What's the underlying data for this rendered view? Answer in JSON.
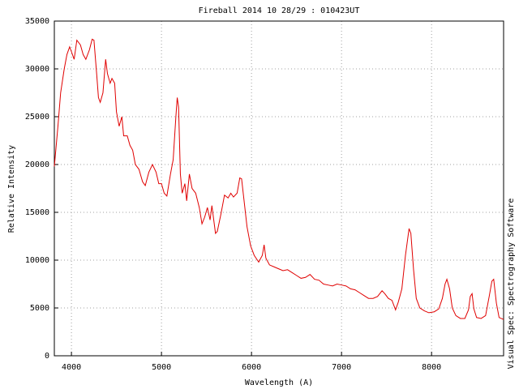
{
  "chart_data": {
    "type": "line",
    "title": "Fireball 2014 10 28/29 : 010423UT",
    "x_label": "Wavelength (A)",
    "y_label": "Relative Intensity",
    "side_label": "Visual Spec: Spectrography Software",
    "x": [
      3810,
      3850,
      3880,
      3920,
      3950,
      3980,
      4000,
      4030,
      4060,
      4100,
      4130,
      4160,
      4200,
      4230,
      4250,
      4280,
      4300,
      4320,
      4350,
      4380,
      4400,
      4430,
      4450,
      4480,
      4500,
      4530,
      4560,
      4580,
      4620,
      4650,
      4680,
      4710,
      4750,
      4790,
      4820,
      4860,
      4900,
      4940,
      4970,
      5000,
      5030,
      5060,
      5100,
      5130,
      5160,
      5175,
      5190,
      5210,
      5230,
      5260,
      5280,
      5310,
      5340,
      5380,
      5420,
      5450,
      5480,
      5510,
      5540,
      5560,
      5600,
      5620,
      5660,
      5700,
      5740,
      5770,
      5800,
      5840,
      5870,
      5890,
      5920,
      5950,
      5990,
      6030,
      6080,
      6120,
      6140,
      6160,
      6200,
      6250,
      6300,
      6350,
      6400,
      6450,
      6500,
      6550,
      6600,
      6650,
      6700,
      6750,
      6800,
      6850,
      6900,
      6950,
      7000,
      7050,
      7100,
      7150,
      7200,
      7250,
      7300,
      7350,
      7400,
      7450,
      7480,
      7520,
      7560,
      7600,
      7630,
      7670,
      7710,
      7750,
      7770,
      7800,
      7830,
      7870,
      7920,
      7970,
      8030,
      8080,
      8120,
      8150,
      8170,
      8200,
      8230,
      8270,
      8320,
      8370,
      8410,
      8430,
      8450,
      8470,
      8500,
      8550,
      8600,
      8640,
      8670,
      8690,
      8720,
      8750,
      8800
    ],
    "series": [
      {
        "color": "#e00000",
        "values": [
          19800,
          24000,
          27500,
          30000,
          31500,
          32300,
          31800,
          31000,
          33000,
          32500,
          31500,
          31000,
          32000,
          33100,
          33000,
          29500,
          27000,
          26500,
          27500,
          31000,
          29500,
          28500,
          29000,
          28500,
          25500,
          24000,
          25000,
          23000,
          23000,
          22000,
          21500,
          20000,
          19500,
          18200,
          17800,
          19200,
          20000,
          19200,
          18000,
          18000,
          17000,
          16700,
          19000,
          20500,
          25000,
          27000,
          26000,
          19000,
          17000,
          18000,
          16200,
          19000,
          17500,
          17000,
          15500,
          13800,
          14500,
          15500,
          14200,
          15700,
          12800,
          13000,
          14800,
          16800,
          16500,
          17000,
          16600,
          17000,
          18600,
          18500,
          16000,
          13500,
          11500,
          10500,
          9800,
          10500,
          11600,
          10200,
          9500,
          9300,
          9100,
          8900,
          9000,
          8700,
          8400,
          8100,
          8200,
          8500,
          8000,
          7900,
          7500,
          7400,
          7300,
          7500,
          7400,
          7300,
          7000,
          6900,
          6600,
          6300,
          6000,
          6000,
          6200,
          6800,
          6500,
          6000,
          5800,
          4800,
          5600,
          7000,
          10500,
          13300,
          12800,
          9000,
          6000,
          5000,
          4700,
          4500,
          4600,
          4900,
          6000,
          7500,
          8000,
          7000,
          5000,
          4200,
          3900,
          3900,
          4800,
          6200,
          6500,
          4900,
          4000,
          3900,
          4200,
          6200,
          7800,
          8000,
          5500,
          4000,
          3800
        ]
      }
    ],
    "xlim": [
      3810,
      8800
    ],
    "ylim": [
      0,
      35000
    ],
    "xticks": [
      4000,
      5000,
      6000,
      7000,
      8000
    ],
    "yticks": [
      0,
      5000,
      10000,
      15000,
      20000,
      25000,
      30000,
      35000
    ],
    "grid": true
  }
}
